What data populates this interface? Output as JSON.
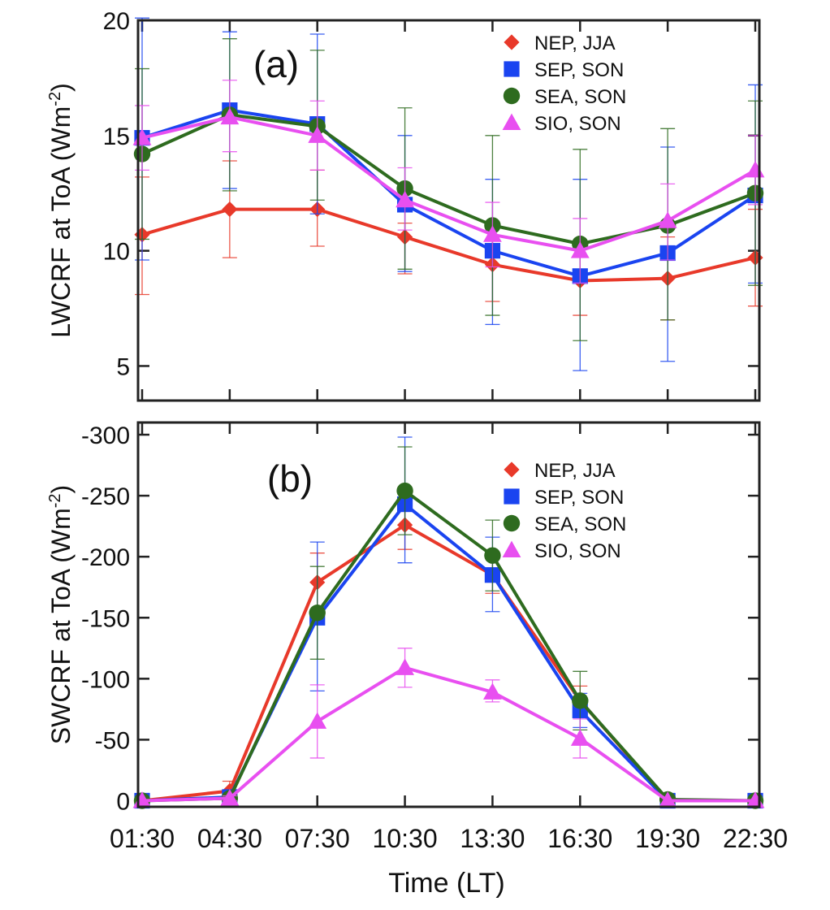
{
  "figure": {
    "xlabel": "Time (LT)",
    "xticks": [
      "01:30",
      "04:30",
      "07:30",
      "10:30",
      "13:30",
      "16:30",
      "19:30",
      "22:30"
    ]
  },
  "chart_data": [
    {
      "type": "line",
      "panel": "(a)",
      "ylabel_main": "LWCRF at ToA (Wm",
      "ylabel_sup": "-2",
      "ylabel_close": ")",
      "ylim": [
        3.5,
        20
      ],
      "yticks": [
        5,
        10,
        15,
        20
      ],
      "x": [
        "01:30",
        "04:30",
        "07:30",
        "10:30",
        "13:30",
        "16:30",
        "19:30",
        "22:30"
      ],
      "legend_position": "top-right",
      "series": [
        {
          "name": "NEP, JJA",
          "color": "#e8392a",
          "marker": "diamond",
          "values": [
            10.7,
            11.8,
            11.8,
            10.6,
            9.4,
            8.7,
            8.8,
            9.7
          ],
          "err_low": [
            8.1,
            9.7,
            10.2,
            9.0,
            7.8,
            7.2,
            7.0,
            7.6
          ],
          "err_high": [
            13.2,
            13.9,
            13.5,
            11.2,
            11.2,
            10.2,
            10.6,
            11.8
          ]
        },
        {
          "name": "SEP, SON",
          "color": "#1a44f0",
          "marker": "square",
          "values": [
            14.9,
            16.1,
            15.5,
            12.0,
            10.0,
            8.9,
            9.9,
            12.4
          ],
          "err_low": [
            9.6,
            12.7,
            11.6,
            9.1,
            6.8,
            4.8,
            5.2,
            8.6
          ],
          "err_high": [
            20.1,
            19.5,
            19.4,
            15.0,
            13.1,
            13.1,
            14.5,
            17.2
          ]
        },
        {
          "name": "SEA, SON",
          "color": "#2e6b1f",
          "marker": "circle",
          "values": [
            14.2,
            15.9,
            15.4,
            12.7,
            11.1,
            10.3,
            11.1,
            12.5
          ],
          "err_low": [
            10.5,
            12.6,
            12.2,
            9.2,
            7.2,
            6.1,
            7.0,
            8.5
          ],
          "err_high": [
            17.9,
            19.2,
            18.7,
            16.2,
            15.0,
            14.4,
            15.3,
            16.5
          ]
        },
        {
          "name": "SIO, SON",
          "color": "#e84ff0",
          "marker": "triangle",
          "values": [
            14.9,
            15.8,
            15.0,
            12.2,
            10.7,
            10.0,
            11.3,
            13.5
          ],
          "err_low": [
            13.5,
            14.3,
            13.5,
            10.9,
            9.3,
            8.6,
            9.6,
            12.0
          ],
          "err_high": [
            16.3,
            17.4,
            16.5,
            13.6,
            12.1,
            11.4,
            12.9,
            15.0
          ]
        }
      ]
    },
    {
      "type": "line",
      "panel": "(b)",
      "ylabel_main": "SWCRF at ToA (Wm",
      "ylabel_sup": "-2",
      "ylabel_close": ")",
      "ylim": [
        5,
        -310
      ],
      "yticks": [
        0,
        -50,
        -100,
        -150,
        -200,
        -250,
        -300
      ],
      "x": [
        "01:30",
        "04:30",
        "07:30",
        "10:30",
        "13:30",
        "16:30",
        "19:30",
        "22:30"
      ],
      "legend_position": "top-right",
      "series": [
        {
          "name": "NEP, JJA",
          "color": "#e8392a",
          "marker": "diamond",
          "values": [
            0,
            -8,
            -179,
            -226,
            -185,
            -82,
            0,
            0
          ],
          "err_low": [
            0,
            -1,
            -155,
            -206,
            -170,
            -70,
            0,
            0
          ],
          "err_high": [
            0,
            -16,
            -203,
            -247,
            -200,
            -94,
            0,
            0
          ]
        },
        {
          "name": "SEP, SON",
          "color": "#1a44f0",
          "marker": "square",
          "values": [
            0,
            -3,
            -150,
            -243,
            -185,
            -74,
            0,
            0
          ],
          "err_low": [
            0,
            0,
            -90,
            -195,
            -155,
            -60,
            0,
            0
          ],
          "err_high": [
            0,
            -6,
            -212,
            -298,
            -216,
            -88,
            0,
            0
          ]
        },
        {
          "name": "SEA, SON",
          "color": "#2e6b1f",
          "marker": "circle",
          "values": [
            0,
            -2,
            -154,
            -254,
            -201,
            -82,
            -1,
            0
          ],
          "err_low": [
            0,
            0,
            -116,
            -218,
            -172,
            -58,
            0,
            0
          ],
          "err_high": [
            0,
            -4,
            -192,
            -290,
            -230,
            -106,
            -2,
            0
          ]
        },
        {
          "name": "SIO, SON",
          "color": "#e84ff0",
          "marker": "triangle",
          "values": [
            0,
            -2,
            -65,
            -109,
            -89,
            -51,
            0,
            0
          ],
          "err_low": [
            0,
            0,
            -35,
            -93,
            -81,
            -35,
            0,
            0
          ],
          "err_high": [
            0,
            -4,
            -95,
            -125,
            -99,
            -67,
            0,
            0
          ]
        }
      ]
    }
  ]
}
